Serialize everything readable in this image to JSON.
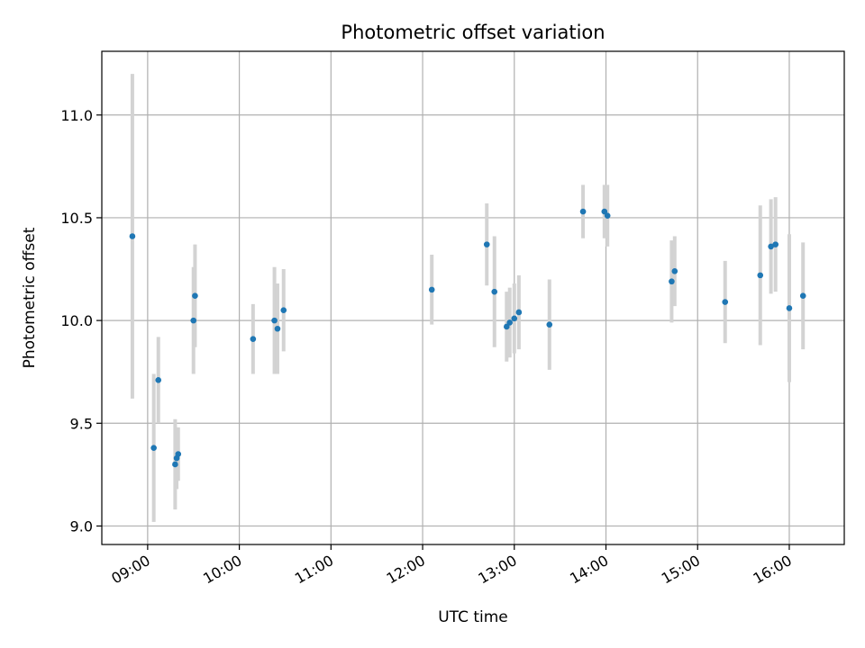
{
  "chart_data": {
    "type": "scatter",
    "title": "Photometric offset variation",
    "xlabel": "UTC time",
    "ylabel": "Photometric offset",
    "x_unit": "UTC time (HH:MM)",
    "xlim": [
      "08:30",
      "16:36"
    ],
    "ylim": [
      8.91,
      11.31
    ],
    "x_ticks": [
      "09:00",
      "10:00",
      "11:00",
      "12:00",
      "13:00",
      "14:00",
      "15:00",
      "16:00"
    ],
    "y_ticks": [
      9.0,
      9.5,
      10.0,
      10.5,
      11.0
    ],
    "y_tick_labels": [
      "9.0",
      "9.5",
      "10.0",
      "10.5",
      "11.0"
    ],
    "grid": true,
    "marker_color": "#1f77b4",
    "errorbar_color": "#d3d3d3",
    "points": [
      {
        "x": "08:50",
        "y": 10.41,
        "err": 0.79
      },
      {
        "x": "09:04",
        "y": 9.38,
        "err": 0.36
      },
      {
        "x": "09:07",
        "y": 9.71,
        "err": 0.21
      },
      {
        "x": "09:18",
        "y": 9.3,
        "err": 0.22
      },
      {
        "x": "09:19",
        "y": 9.33,
        "err": 0.15
      },
      {
        "x": "09:20",
        "y": 9.35,
        "err": 0.13
      },
      {
        "x": "09:30",
        "y": 10.0,
        "err": 0.26
      },
      {
        "x": "09:31",
        "y": 10.12,
        "err": 0.25
      },
      {
        "x": "10:09",
        "y": 9.91,
        "err": 0.17
      },
      {
        "x": "10:23",
        "y": 10.0,
        "err": 0.26
      },
      {
        "x": "10:25",
        "y": 9.96,
        "err": 0.22
      },
      {
        "x": "10:29",
        "y": 10.05,
        "err": 0.2
      },
      {
        "x": "12:06",
        "y": 10.15,
        "err": 0.17
      },
      {
        "x": "12:42",
        "y": 10.37,
        "err": 0.2
      },
      {
        "x": "12:47",
        "y": 10.14,
        "err": 0.27
      },
      {
        "x": "12:55",
        "y": 9.97,
        "err": 0.17
      },
      {
        "x": "12:57",
        "y": 9.99,
        "err": 0.17
      },
      {
        "x": "13:00",
        "y": 10.01,
        "err": 0.17
      },
      {
        "x": "13:03",
        "y": 10.04,
        "err": 0.18
      },
      {
        "x": "13:23",
        "y": 9.98,
        "err": 0.22
      },
      {
        "x": "13:45",
        "y": 10.53,
        "err": 0.13
      },
      {
        "x": "13:59",
        "y": 10.53,
        "err": 0.13
      },
      {
        "x": "14:01",
        "y": 10.51,
        "err": 0.15
      },
      {
        "x": "14:43",
        "y": 10.19,
        "err": 0.2
      },
      {
        "x": "14:45",
        "y": 10.24,
        "err": 0.17
      },
      {
        "x": "15:18",
        "y": 10.09,
        "err": 0.2
      },
      {
        "x": "15:41",
        "y": 10.22,
        "err": 0.34
      },
      {
        "x": "15:48",
        "y": 10.36,
        "err": 0.23
      },
      {
        "x": "15:51",
        "y": 10.37,
        "err": 0.23
      },
      {
        "x": "16:00",
        "y": 10.06,
        "err": 0.36
      },
      {
        "x": "16:09",
        "y": 10.12,
        "err": 0.26
      }
    ]
  }
}
